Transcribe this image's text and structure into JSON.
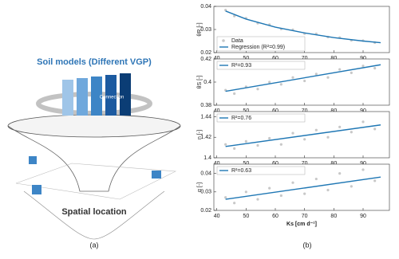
{
  "diagram": {
    "title": "Soil models (Different VGP)",
    "ring_label": "Connection",
    "bottom_label": "Spatial location",
    "caption": "(a)"
  },
  "caption_b": "(b)",
  "chart_data": [
    {
      "type": "scatter",
      "ylabel": "θR [-]",
      "xlim": [
        39,
        99
      ],
      "xticks": [
        40,
        50,
        60,
        70,
        80,
        90
      ],
      "ylim": [
        0.02,
        0.04
      ],
      "yticks": [
        0.02,
        0.03,
        0.04
      ],
      "legend": "lower left",
      "series": [
        {
          "name": "Data",
          "mode": "markers",
          "color": "#c8c8c8",
          "x": [
            43,
            46,
            50,
            54,
            58,
            62,
            66,
            70,
            74,
            78,
            82,
            86,
            90,
            94
          ],
          "values": [
            0.0384,
            0.0358,
            0.0349,
            0.0327,
            0.0321,
            0.0302,
            0.0299,
            0.0282,
            0.0281,
            0.0267,
            0.0265,
            0.0253,
            0.0252,
            0.0243
          ]
        },
        {
          "name": "Regression (R²=0.99)",
          "mode": "line",
          "color": "#1f77b4",
          "x": [
            43,
            50,
            60,
            70,
            80,
            90,
            96
          ],
          "values": [
            0.038,
            0.0345,
            0.031,
            0.0285,
            0.0265,
            0.025,
            0.0243
          ]
        }
      ]
    },
    {
      "type": "scatter",
      "ylabel": "θS [-]",
      "xlim": [
        39,
        99
      ],
      "xticks": [
        40,
        50,
        60,
        70,
        80,
        90
      ],
      "ylim": [
        0.38,
        0.42
      ],
      "yticks": [
        0.38,
        0.4,
        0.42
      ],
      "legend": "upper left",
      "series": [
        {
          "mode": "markers",
          "color": "#c8c8c8",
          "x": [
            43,
            46,
            50,
            54,
            58,
            62,
            66,
            70,
            74,
            78,
            82,
            86,
            90,
            94
          ],
          "values": [
            0.393,
            0.39,
            0.396,
            0.394,
            0.4,
            0.398,
            0.404,
            0.401,
            0.407,
            0.404,
            0.411,
            0.408,
            0.414,
            0.412
          ]
        },
        {
          "name": "R²=0.93",
          "mode": "line",
          "color": "#1f77b4",
          "x": [
            43,
            96
          ],
          "values": [
            0.392,
            0.415
          ]
        }
      ]
    },
    {
      "type": "scatter",
      "ylabel": "n [-]",
      "xlim": [
        39,
        99
      ],
      "xticks": [
        40,
        50,
        60,
        70,
        80,
        90
      ],
      "ylim": [
        1.4,
        1.445
      ],
      "yticks": [
        1.4,
        1.42,
        1.44
      ],
      "legend": "upper left",
      "series": [
        {
          "mode": "markers",
          "color": "#c8c8c8",
          "x": [
            43,
            46,
            50,
            54,
            58,
            62,
            66,
            70,
            74,
            78,
            82,
            86,
            90,
            94
          ],
          "values": [
            1.413,
            1.409,
            1.416,
            1.412,
            1.419,
            1.413,
            1.424,
            1.418,
            1.427,
            1.42,
            1.43,
            1.425,
            1.435,
            1.428
          ]
        },
        {
          "name": "R²=0.76",
          "mode": "line",
          "color": "#1f77b4",
          "x": [
            43,
            96
          ],
          "values": [
            1.411,
            1.432
          ]
        }
      ]
    },
    {
      "type": "scatter",
      "ylabel": "α [-]",
      "xlabel": "Ks [cm d⁻¹]",
      "xlim": [
        39,
        99
      ],
      "xticks": [
        40,
        50,
        60,
        70,
        80,
        90
      ],
      "ylim": [
        0.02,
        0.045
      ],
      "yticks": [
        0.02,
        0.03,
        0.04
      ],
      "legend": "upper left",
      "series": [
        {
          "mode": "markers",
          "color": "#c8c8c8",
          "x": [
            43,
            46,
            50,
            54,
            58,
            62,
            66,
            70,
            74,
            78,
            82,
            86,
            90,
            94
          ],
          "values": [
            0.027,
            0.024,
            0.03,
            0.026,
            0.032,
            0.028,
            0.035,
            0.029,
            0.037,
            0.031,
            0.04,
            0.033,
            0.042,
            0.036
          ]
        },
        {
          "name": "R²=0.63",
          "mode": "line",
          "color": "#1f77b4",
          "x": [
            43,
            96
          ],
          "values": [
            0.026,
            0.038
          ]
        }
      ]
    }
  ]
}
